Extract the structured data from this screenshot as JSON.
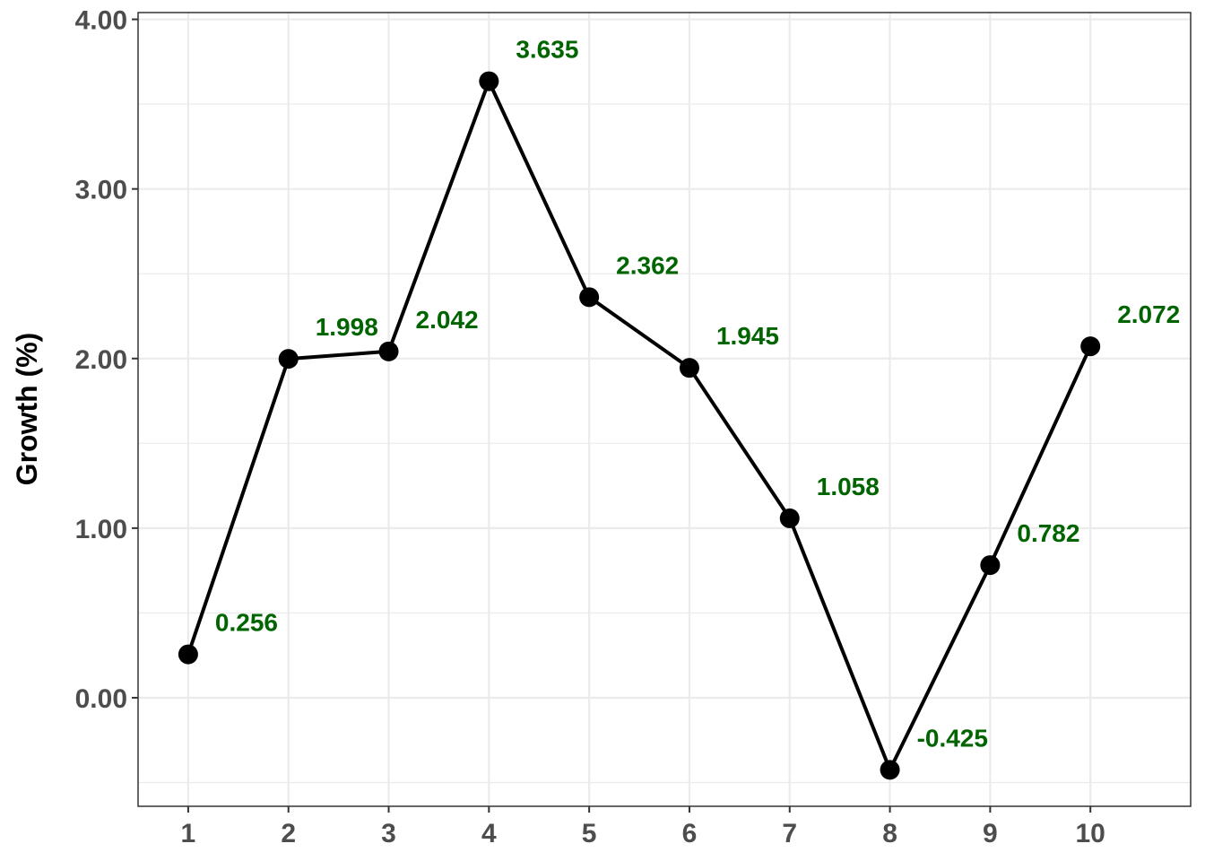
{
  "chart_data": {
    "type": "line",
    "title": "",
    "xlabel": "",
    "ylabel": "Growth (%)",
    "x": [
      1,
      2,
      3,
      4,
      5,
      6,
      7,
      8,
      9,
      10
    ],
    "x_tick_labels": [
      "1",
      "2",
      "3",
      "4",
      "5",
      "6",
      "7",
      "8",
      "9",
      "10"
    ],
    "series": [
      {
        "values": [
          0.256,
          1.998,
          2.042,
          3.635,
          2.362,
          1.945,
          1.058,
          -0.425,
          0.782,
          2.072
        ],
        "labels": [
          "0.256",
          "1.998",
          "2.042",
          "3.635",
          "2.362",
          "1.945",
          "1.058",
          "-0.425",
          "0.782",
          "2.072"
        ],
        "line_color": "#000000",
        "marker_color": "#000000",
        "label_color": "#006400"
      }
    ],
    "y_ticks": [
      0,
      1,
      2,
      3,
      4
    ],
    "y_tick_labels": [
      "0.00",
      "1.00",
      "2.00",
      "3.00",
      "4.00"
    ],
    "xlim": [
      0.5,
      11.0
    ],
    "ylim": [
      -0.64,
      4.04
    ],
    "grid": true,
    "grid_color": "#ebebeb",
    "legend": "none"
  }
}
